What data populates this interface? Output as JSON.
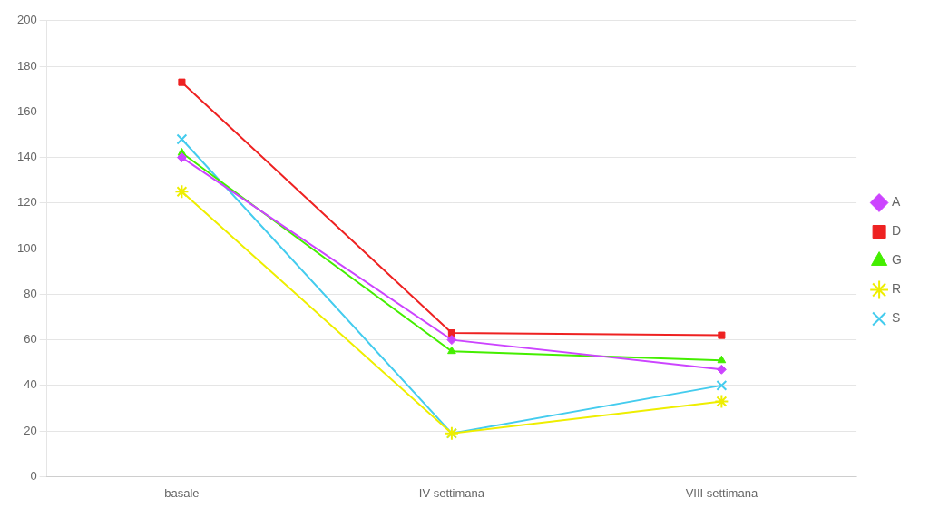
{
  "chart_data": {
    "type": "line",
    "categories": [
      "basale",
      "IV settimana",
      "VIII settimana"
    ],
    "series": [
      {
        "name": "A",
        "color": "#CC44FF",
        "marker": "diamond",
        "values": [
          140,
          60,
          47
        ]
      },
      {
        "name": "D",
        "color": "#EE2222",
        "marker": "square",
        "values": [
          173,
          63,
          62
        ]
      },
      {
        "name": "G",
        "color": "#44EE00",
        "marker": "triangle",
        "values": [
          142,
          55,
          51
        ]
      },
      {
        "name": "R",
        "color": "#EEEE00",
        "marker": "star",
        "values": [
          125,
          19,
          33
        ]
      },
      {
        "name": "S",
        "color": "#44CCEE",
        "marker": "x",
        "values": [
          148,
          19,
          40
        ]
      }
    ],
    "ylim": [
      0,
      200
    ],
    "yticks": [
      0,
      20,
      40,
      60,
      80,
      100,
      120,
      140,
      160,
      180,
      200
    ],
    "grid": true,
    "legend": "right"
  }
}
